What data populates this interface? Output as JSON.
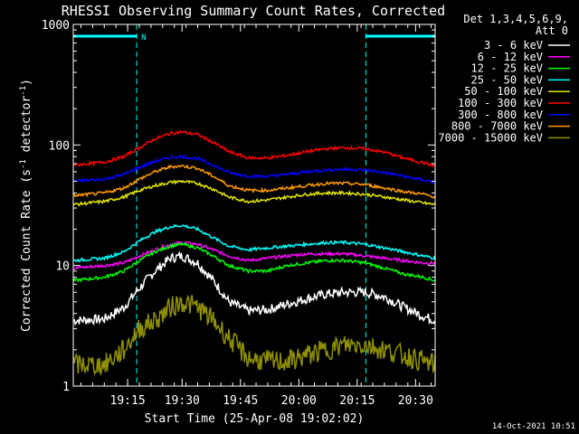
{
  "chart_data": {
    "type": "line",
    "title": "RHESSI Observing Summary Count Rates, Corrected",
    "xlabel": "Start Time (25-Apr-08 19:02:02)",
    "ylabel_main": "Corrected Count Rate (s",
    "ylabel_sup1": "-1",
    "ylabel_mid": " detector",
    "ylabel_sup2": "-1",
    "ylabel_end": ")",
    "yscale": "log",
    "ylim": [
      1,
      1000
    ],
    "xlim_minutes": [
      0,
      93
    ],
    "y_tick_labels": [
      "1",
      "10",
      "100",
      "1000"
    ],
    "x_ticks": [
      {
        "minute": 13.97,
        "label": "19:15"
      },
      {
        "minute": 27.97,
        "label": "19:30"
      },
      {
        "minute": 42.97,
        "label": "19:45"
      },
      {
        "minute": 57.97,
        "label": "20:00"
      },
      {
        "minute": 72.97,
        "label": "20:15"
      },
      {
        "minute": 87.97,
        "label": "20:30"
      }
    ],
    "legend_header_1": "Det 1,3,4,5,6,9,",
    "legend_header_2": "Att 0",
    "night_intervals": [
      [
        0,
        16.3
      ],
      [
        75.2,
        93
      ]
    ],
    "night_marker_label": "N",
    "series": [
      {
        "name": "3 - 6 keV",
        "color": "#ffffff",
        "x": [
          0,
          8,
          13,
          17,
          21,
          25,
          28,
          32,
          36,
          40,
          45,
          50,
          55,
          60,
          65,
          70,
          75,
          80,
          85,
          90,
          93
        ],
        "y": [
          3.5,
          3.6,
          4.5,
          6.5,
          9.0,
          11.5,
          12.0,
          10.5,
          7.5,
          5.0,
          4.2,
          4.3,
          4.8,
          5.3,
          5.8,
          6.0,
          6.0,
          5.5,
          4.5,
          3.8,
          3.5
        ]
      },
      {
        "name": "6 - 12 keV",
        "color": "#ff00ff",
        "x": [
          0,
          8,
          13,
          17,
          21,
          25,
          28,
          32,
          36,
          40,
          45,
          50,
          55,
          60,
          65,
          70,
          75,
          80,
          85,
          90,
          93
        ],
        "y": [
          9.5,
          10.0,
          10.5,
          12.0,
          13.5,
          15.0,
          15.5,
          15.0,
          13.5,
          12.0,
          11.0,
          11.5,
          12.0,
          12.5,
          12.5,
          12.5,
          12.0,
          11.5,
          11.0,
          10.5,
          10.5
        ]
      },
      {
        "name": "12 - 25 keV",
        "color": "#00ff00",
        "x": [
          0,
          8,
          13,
          17,
          21,
          25,
          28,
          32,
          36,
          40,
          45,
          50,
          55,
          60,
          65,
          70,
          75,
          80,
          85,
          90,
          93
        ],
        "y": [
          7.5,
          8.0,
          9.0,
          11.0,
          13.0,
          14.5,
          15.0,
          14.0,
          12.0,
          10.0,
          9.0,
          9.0,
          10.0,
          10.5,
          11.0,
          11.0,
          10.5,
          9.5,
          8.5,
          8.0,
          7.5
        ]
      },
      {
        "name": "25 - 50 keV",
        "color": "#00ffff",
        "x": [
          0,
          8,
          13,
          17,
          21,
          25,
          28,
          32,
          36,
          40,
          45,
          50,
          55,
          60,
          65,
          70,
          75,
          80,
          85,
          90,
          93
        ],
        "y": [
          11.0,
          11.5,
          13.0,
          16.0,
          19.0,
          21.0,
          21.5,
          20.0,
          17.0,
          14.5,
          13.5,
          14.0,
          14.5,
          15.0,
          15.5,
          15.5,
          15.0,
          14.0,
          13.0,
          12.0,
          11.5
        ]
      },
      {
        "name": "50 - 100 keV",
        "color": "#e5e500",
        "x": [
          0,
          8,
          13,
          17,
          21,
          25,
          28,
          32,
          36,
          40,
          45,
          50,
          55,
          60,
          65,
          70,
          75,
          80,
          85,
          90,
          93
        ],
        "y": [
          32,
          34,
          37,
          42,
          46,
          49,
          50,
          48,
          43,
          37,
          34,
          35,
          37,
          39,
          40,
          40,
          39,
          37,
          35,
          33,
          32
        ]
      },
      {
        "name": "100 - 300 keV",
        "color": "#ff0000",
        "x": [
          0,
          8,
          13,
          17,
          21,
          25,
          28,
          32,
          36,
          40,
          45,
          50,
          55,
          60,
          65,
          70,
          75,
          80,
          85,
          90,
          93
        ],
        "y": [
          68,
          72,
          80,
          95,
          112,
          125,
          128,
          122,
          105,
          88,
          78,
          78,
          82,
          88,
          93,
          95,
          93,
          87,
          78,
          71,
          67
        ]
      },
      {
        "name": "300 - 800 keV",
        "color": "#0000ff",
        "x": [
          0,
          8,
          13,
          17,
          21,
          25,
          28,
          32,
          36,
          40,
          45,
          50,
          55,
          60,
          65,
          70,
          75,
          80,
          85,
          90,
          93
        ],
        "y": [
          50,
          52,
          57,
          65,
          73,
          79,
          80,
          77,
          68,
          59,
          55,
          55,
          57,
          60,
          62,
          63,
          62,
          59,
          55,
          51,
          49
        ]
      },
      {
        "name": "800 - 7000 keV",
        "color": "#ff9900",
        "x": [
          0,
          8,
          13,
          17,
          21,
          25,
          28,
          32,
          36,
          40,
          45,
          50,
          55,
          60,
          65,
          70,
          75,
          80,
          85,
          90,
          93
        ],
        "y": [
          38,
          40,
          44,
          52,
          60,
          66,
          67,
          64,
          55,
          46,
          42,
          42,
          44,
          46,
          48,
          48,
          47,
          44,
          41,
          39,
          37
        ]
      },
      {
        "name": "7000 - 15000 keV",
        "color": "#8f8f00",
        "x": [
          0,
          8,
          13,
          17,
          21,
          25,
          28,
          32,
          36,
          40,
          45,
          50,
          55,
          60,
          65,
          70,
          75,
          80,
          85,
          90,
          93
        ],
        "y": [
          1.5,
          1.5,
          2.0,
          3.0,
          3.5,
          4.5,
          5.0,
          4.5,
          3.5,
          2.5,
          1.7,
          1.6,
          1.6,
          1.8,
          2.0,
          2.2,
          2.2,
          2.0,
          1.8,
          1.6,
          1.5
        ]
      }
    ]
  },
  "footer_date": "14-Oct-2021 10:51"
}
